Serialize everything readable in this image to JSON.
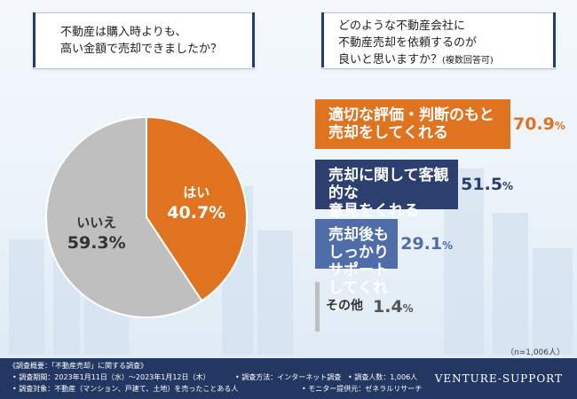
{
  "questions": {
    "q1": "不動産は購入時よりも、\n高い金額で売却できましたか？",
    "q2": "どのような不動産会社に\n不動産売却を依頼するのが\n良いと思いますか？",
    "q2_sub": "(複数回答可)"
  },
  "colors": {
    "yes": "#e07320",
    "no": "#bfbfbf",
    "navy": "#2c3f6e",
    "blue": "#4f6da9",
    "footer": "#223762"
  },
  "chart_data": [
    {
      "type": "pie",
      "labels": [
        "はい",
        "いいえ"
      ],
      "values": [
        40.7,
        59.3
      ],
      "value_labels": [
        "40.7%",
        "59.3%"
      ]
    },
    {
      "type": "bar",
      "categories": [
        "適切な評価・判断のもと\n売却をしてくれる",
        "売却に関して客観的な\n意見をくれる",
        "売却後もしっかり\nサポートしてくれる",
        "その他"
      ],
      "values": [
        70.9,
        51.5,
        29.1,
        1.4
      ],
      "value_labels": [
        "70.9",
        "51.5",
        "29.1",
        "1.4"
      ],
      "unit": "%"
    }
  ],
  "note": "（n=1,006人）",
  "footer": {
    "title": "《調査概要：「不動産売却」に関する調査》",
    "period": "• 調査期間：2023年1月11日（水）〜2023年1月12日（木）",
    "method": "• 調査方法：インターネット調査",
    "count": "• 調査人数：1,006人",
    "target": "• 調査対象：不動産（マンション、戸建て、土地）を売ったことある人",
    "provider": "• モニター提供元：ゼネラルリサーチ",
    "brand": "VENTURE-SUPPORT"
  }
}
